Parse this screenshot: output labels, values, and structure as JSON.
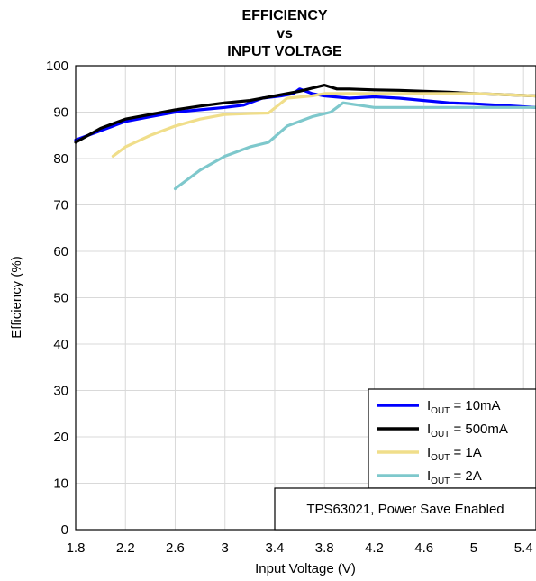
{
  "chart_data": {
    "type": "line",
    "title": [
      "EFFICIENCY",
      "vs",
      "INPUT VOLTAGE"
    ],
    "xlabel": "Input Voltage (V)",
    "ylabel": "Efficiency (%)",
    "xlim": [
      1.8,
      5.5
    ],
    "ylim": [
      0,
      100
    ],
    "xticks": [
      "1.8",
      "2.2",
      "2.6",
      "3",
      "3.4",
      "3.8",
      "4.2",
      "4.6",
      "5",
      "5.4"
    ],
    "yticks": [
      "0",
      "10",
      "20",
      "30",
      "40",
      "50",
      "60",
      "70",
      "80",
      "90",
      "100"
    ],
    "grid": true,
    "legend_position": "bottom-right",
    "series": [
      {
        "name": "10mA",
        "color": "#0000ff",
        "x": [
          1.8,
          2.0,
          2.2,
          2.4,
          2.6,
          2.8,
          3.0,
          3.15,
          3.3,
          3.45,
          3.55,
          3.6,
          3.7,
          3.8,
          4.0,
          4.2,
          4.4,
          4.6,
          4.8,
          5.0,
          5.2,
          5.5
        ],
        "y": [
          84,
          86,
          88,
          89,
          90,
          90.5,
          91,
          91.5,
          93,
          93.5,
          94,
          95,
          94,
          93.5,
          93,
          93.3,
          93,
          92.5,
          92,
          91.8,
          91.5,
          91
        ]
      },
      {
        "name": "500mA",
        "color": "#000000",
        "x": [
          1.8,
          2.0,
          2.2,
          2.4,
          2.6,
          2.8,
          3.0,
          3.2,
          3.4,
          3.6,
          3.8,
          3.9,
          4.0,
          4.2,
          4.4,
          4.6,
          4.8,
          5.0,
          5.2,
          5.5
        ],
        "y": [
          83.5,
          86.5,
          88.5,
          89.5,
          90.5,
          91.3,
          92,
          92.5,
          93.5,
          94.5,
          95.8,
          95,
          95,
          94.8,
          94.7,
          94.5,
          94.3,
          94,
          93.8,
          93.5
        ]
      },
      {
        "name": "1A",
        "color": "#f0de8a",
        "x": [
          2.1,
          2.2,
          2.4,
          2.6,
          2.8,
          3.0,
          3.2,
          3.35,
          3.5,
          3.7,
          3.8,
          3.9,
          4.0,
          4.2,
          4.4,
          4.6,
          4.8,
          5.0,
          5.2,
          5.5
        ],
        "y": [
          80.5,
          82.5,
          85,
          87,
          88.5,
          89.5,
          89.7,
          89.8,
          93,
          93.5,
          94,
          94,
          94,
          94,
          94,
          94,
          94,
          94,
          93.8,
          93.5
        ]
      },
      {
        "name": "2A",
        "color": "#7ec8cc",
        "x": [
          2.6,
          2.8,
          3.0,
          3.2,
          3.35,
          3.5,
          3.7,
          3.85,
          3.95,
          4.2,
          4.6,
          5.0,
          5.5
        ],
        "y": [
          73.5,
          77.5,
          80.5,
          82.5,
          83.5,
          87,
          89,
          90,
          92,
          91,
          91,
          91,
          91
        ]
      }
    ],
    "legend": [
      {
        "prefix": "I",
        "sub": "OUT",
        "text": " = 10mA"
      },
      {
        "prefix": "I",
        "sub": "OUT",
        "text": " = 500mA"
      },
      {
        "prefix": "I",
        "sub": "OUT",
        "text": " = 1A"
      },
      {
        "prefix": "I",
        "sub": "OUT",
        "text": " = 2A"
      }
    ],
    "annotation": "TPS63021, Power Save Enabled"
  }
}
